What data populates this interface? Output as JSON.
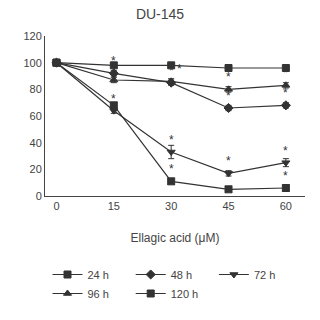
{
  "chart_data": {
    "type": "line",
    "title": "DU-145",
    "xlabel": "Ellagic acid (μM)",
    "x": [
      0,
      15,
      30,
      45,
      60
    ],
    "series": [
      {
        "name": "24 h",
        "values": [
          100,
          98,
          98,
          96,
          96
        ],
        "yerr": [
          0,
          1,
          1,
          1,
          1
        ],
        "marker": "square",
        "color": "#333333"
      },
      {
        "name": "48 h",
        "values": [
          100,
          92,
          85,
          66,
          68
        ],
        "yerr": [
          0,
          2,
          2,
          2,
          2
        ],
        "marker": "diamond",
        "color": "#333333"
      },
      {
        "name": "72 h",
        "values": [
          100,
          64,
          33,
          17,
          25
        ],
        "yerr": [
          0,
          2,
          5,
          2,
          3
        ],
        "marker": "triangle-down",
        "color": "#333333"
      },
      {
        "name": "96 h",
        "values": [
          100,
          87,
          86,
          80,
          83
        ],
        "yerr": [
          0,
          2,
          2,
          2,
          2
        ],
        "marker": "triangle-up",
        "color": "#333333"
      },
      {
        "name": "120 h",
        "values": [
          100,
          68,
          11,
          5,
          6
        ],
        "yerr": [
          0,
          2,
          2,
          1,
          1
        ],
        "marker": "square-x",
        "color": "#333333"
      }
    ],
    "annotations": [
      {
        "text": "*",
        "x": 15,
        "y": 92
      },
      {
        "text": "*",
        "x": 30,
        "y": 85
      },
      {
        "text": "*",
        "x": 45,
        "y": 66
      },
      {
        "text": "*",
        "x": 60,
        "y": 68
      },
      {
        "text": "*",
        "x": 15,
        "y": 64
      },
      {
        "text": "*",
        "x": 30,
        "y": 33
      },
      {
        "text": "*",
        "x": 45,
        "y": 17
      },
      {
        "text": "*",
        "x": 60,
        "y": 25
      },
      {
        "text": "*",
        "x": 30,
        "y": 86
      },
      {
        "text": "*",
        "x": 45,
        "y": 80
      },
      {
        "text": "*",
        "x": 60,
        "y": 83
      },
      {
        "text": "*",
        "x": 30,
        "y": 11
      },
      {
        "text": "*",
        "x": 45,
        "y": 5
      },
      {
        "text": "*",
        "x": 60,
        "y": 6
      }
    ],
    "xlim": [
      -3,
      65
    ],
    "xticks": [
      0,
      15,
      30,
      45,
      60
    ],
    "ylim": [
      0,
      120
    ],
    "yticks": [
      0,
      20,
      40,
      60,
      80,
      100,
      120
    ],
    "grid": false,
    "legend": "bottom",
    "color": "#333333"
  }
}
